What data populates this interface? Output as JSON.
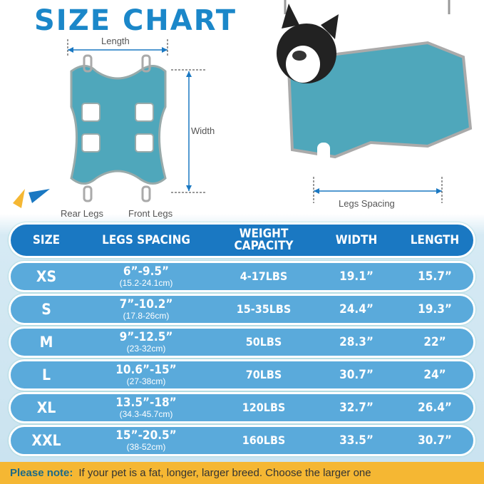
{
  "title": "SIZE CHART",
  "diagram": {
    "length": "Length",
    "width": "Width",
    "rear_legs": "Rear Legs",
    "front_legs": "Front Legs",
    "legs_spacing": "Legs Spacing"
  },
  "colors": {
    "title": "#1b87c9",
    "header": "#1a78c2",
    "row": "#5aaadb",
    "note_bg": "#f5b733",
    "fabric": "#4fa7bb"
  },
  "table": {
    "headers": [
      "SIZE",
      "LEGS SPACING",
      "WEIGHT CAPACITY",
      "WIDTH",
      "LENGTH"
    ],
    "rows": [
      {
        "size": "XS",
        "legs": "6”-9.5”",
        "legs_cm": "(15.2-24.1cm)",
        "weight": "4-17LBS",
        "width": "19.1”",
        "length": "15.7”"
      },
      {
        "size": "S",
        "legs": "7”-10.2”",
        "legs_cm": "(17.8-26cm)",
        "weight": "15-35LBS",
        "width": "24.4”",
        "length": "19.3”"
      },
      {
        "size": "M",
        "legs": "9”-12.5”",
        "legs_cm": "(23-32cm)",
        "weight": "50LBS",
        "width": "28.3”",
        "length": "22”"
      },
      {
        "size": "L",
        "legs": "10.6”-15”",
        "legs_cm": "(27-38cm)",
        "weight": "70LBS",
        "width": "30.7”",
        "length": "24”"
      },
      {
        "size": "XL",
        "legs": "13.5”-18”",
        "legs_cm": "(34.3-45.7cm)",
        "weight": "120LBS",
        "width": "32.7”",
        "length": "26.4”"
      },
      {
        "size": "XXL",
        "legs": "15”-20.5”",
        "legs_cm": "(38-52cm)",
        "weight": "160LBS",
        "width": "33.5”",
        "length": "30.7”"
      }
    ]
  },
  "note": {
    "label": "Please note:",
    "text": "If your pet is a fat, longer, larger breed. Choose the larger one"
  }
}
